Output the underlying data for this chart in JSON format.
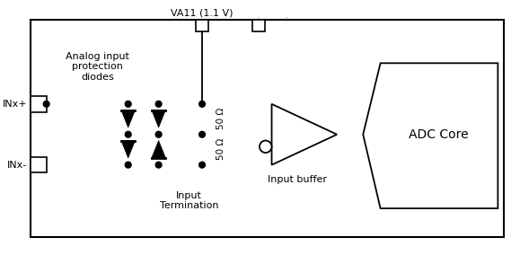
{
  "bg_color": "#ffffff",
  "line_color": "#000000",
  "VA11_label": "VA11 (1.1 V)",
  "INxp_label": "INx+",
  "INxm_label": "INx-",
  "protection_label": "Analog input\nprotection\ndiodes",
  "termination_label": "Input\nTermination",
  "buffer_label": "Input buffer",
  "adc_label": "ADC Core",
  "res_top_label": "50 Ω",
  "res_bot_label": "50 Ω",
  "figsize": [
    5.79,
    2.84
  ],
  "dpi": 100
}
